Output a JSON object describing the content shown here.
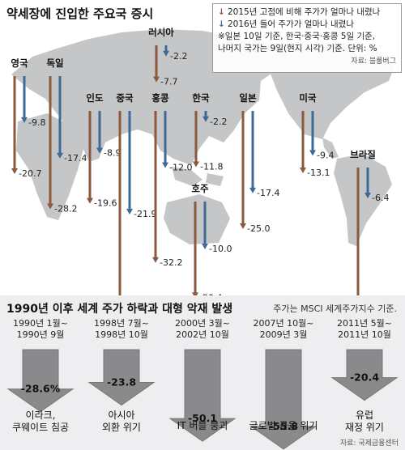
{
  "top": {
    "title": "약세장에 진입한 주요국 증시",
    "legend": {
      "item1": "2015년 고점에 비해 주가가 얼마나 내렸나",
      "item2": "2016년 들어 주가가 얼마나 내렸나",
      "note1": "※일본 10일 기준, 한국·중국·홍콩 5일 기준,",
      "note2": "나머지 국가는 9일(현지 시각) 기준.  단위: %",
      "source": "자료: 블룸버그"
    },
    "colors": {
      "since_2015_peak": "#8b5a3c",
      "since_2016": "#3f6a96",
      "map": "#c5c6c8"
    }
  },
  "bottom": {
    "title": "1990년 이후 세계 주가 하락과 대형 악재 발생",
    "basis": "주가는 MSCI 세계주가지수 기준.",
    "source": "자료: 국제금융센터"
  },
  "chart_data": [
    {
      "type": "bar",
      "title": "약세장에 진입한 주요국 증시",
      "unit": "%",
      "categories": [
        "영국",
        "독일",
        "인도",
        "중국",
        "홍콩",
        "러시아",
        "한국",
        "호주",
        "일본",
        "미국",
        "브라질"
      ],
      "series": [
        {
          "name": "2015년 고점에 비해 주가가 얼마나 내렸나",
          "values": [
            -20.7,
            -28.2,
            -19.6,
            -46.5,
            -32.2,
            -7.7,
            -11.8,
            -20.4,
            -25.0,
            -13.1,
            -30.1
          ]
        },
        {
          "name": "2016년 들어 주가가 얼마나 내렸나",
          "values": [
            -9.8,
            -17.4,
            -8.9,
            -21.9,
            -12.0,
            -2.2,
            -2.2,
            -10.0,
            -17.4,
            -9.4,
            -6.4
          ]
        }
      ],
      "labels": {
        "since_2015_peak": [
          "-20.7",
          "-28.2",
          "-19.6",
          "-46.5%",
          "-32.2",
          "-7.7",
          "-11.8",
          "-20.4",
          "-25.0",
          "-13.1",
          "-30.1"
        ],
        "since_2016": [
          "-9.8",
          "-17.4",
          "-8.9",
          "-21.9",
          "-12.0",
          "-2.2",
          "-2.2",
          "-10.0",
          "-17.4",
          "-9.4",
          "-6.4"
        ]
      }
    },
    {
      "type": "bar",
      "title": "1990년 이후 세계 주가 하락과 대형 악재 발생",
      "periods": [
        [
          "1990년 1월~",
          "1990년 9월"
        ],
        [
          "1998년 7월~",
          "1998년 10월"
        ],
        [
          "2000년 3월~",
          "2002년 10월"
        ],
        [
          "2007년 10월~",
          "2009년 3월"
        ],
        [
          "2011년 5월~",
          "2011년 10월"
        ]
      ],
      "values": [
        -28.6,
        -23.8,
        -50.1,
        -55.8,
        -20.4
      ],
      "value_labels": [
        "-28.6%",
        "-23.8",
        "-50.1",
        "-55.8",
        "-20.4"
      ],
      "events": [
        [
          "이라크,",
          "쿠웨이트 침공"
        ],
        [
          "아시아",
          "외환 위기"
        ],
        [
          "IT 버블 붕괴"
        ],
        [
          "글로벌 금융 위기"
        ],
        [
          "유럽",
          "재정 위기"
        ]
      ]
    }
  ]
}
